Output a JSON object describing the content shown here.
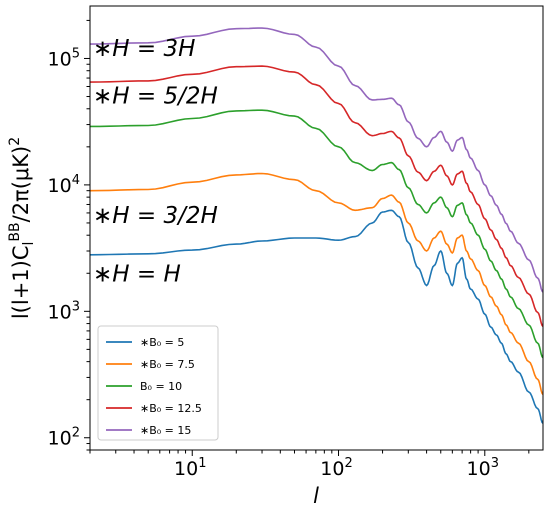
{
  "chart_data": {
    "type": "line",
    "title": "",
    "xlabel": "l",
    "ylabel": "l(l+1)C_l^{BB}/2π(μK)^2",
    "xscale": "log",
    "yscale": "log",
    "xlim": [
      2,
      2500
    ],
    "ylim": [
      80,
      260000
    ],
    "x_ticks": [
      {
        "base": "10",
        "exp": "1"
      },
      {
        "base": "10",
        "exp": "2"
      },
      {
        "base": "10",
        "exp": "3"
      }
    ],
    "y_ticks": [
      {
        "base": "10",
        "exp": "2"
      },
      {
        "base": "10",
        "exp": "3"
      },
      {
        "base": "10",
        "exp": "4"
      },
      {
        "base": "10",
        "exp": "5"
      }
    ],
    "grid": false,
    "legend_position": "lower-left",
    "series": [
      {
        "name": "∗B₀ = 5",
        "color": "#1f77b4",
        "x": [
          2,
          5,
          10,
          20,
          30,
          50,
          70,
          100,
          130,
          170,
          200,
          230,
          260,
          300,
          350,
          400,
          450,
          500,
          550,
          600,
          650,
          700,
          750,
          800,
          900,
          1000,
          1100,
          1200,
          1300,
          1400,
          1500,
          1700,
          2000,
          2300,
          2500
        ],
        "y": [
          2800,
          2850,
          3050,
          3400,
          3600,
          3800,
          3800,
          3650,
          3900,
          5000,
          6100,
          6300,
          5600,
          3500,
          2200,
          1600,
          2300,
          3000,
          2000,
          1600,
          2400,
          2650,
          1800,
          1500,
          1250,
          950,
          750,
          650,
          560,
          460,
          400,
          330,
          230,
          170,
          130
        ]
      },
      {
        "name": "∗B₀ = 7.5",
        "color": "#ff7f0e",
        "x": [
          2,
          5,
          10,
          20,
          30,
          50,
          70,
          100,
          130,
          170,
          200,
          230,
          260,
          300,
          350,
          400,
          450,
          500,
          550,
          600,
          650,
          700,
          750,
          800,
          900,
          1000,
          1100,
          1200,
          1300,
          1400,
          1500,
          1700,
          2000,
          2300,
          2500
        ],
        "y": [
          9000,
          9200,
          10500,
          12000,
          12300,
          11000,
          9000,
          7200,
          6300,
          6600,
          7800,
          8300,
          7300,
          5000,
          3600,
          3000,
          3800,
          4300,
          3400,
          2900,
          3800,
          4000,
          3000,
          2600,
          2100,
          1600,
          1300,
          1100,
          940,
          780,
          680,
          560,
          400,
          290,
          220
        ]
      },
      {
        "name": "B₀ = 10",
        "color": "#2ca02c",
        "x": [
          2,
          5,
          10,
          20,
          30,
          50,
          70,
          100,
          130,
          170,
          200,
          230,
          260,
          300,
          350,
          400,
          450,
          500,
          550,
          600,
          650,
          700,
          750,
          800,
          900,
          1000,
          1100,
          1200,
          1300,
          1400,
          1500,
          1700,
          2000,
          2300,
          2500
        ],
        "y": [
          29000,
          29500,
          33500,
          38500,
          39000,
          35000,
          28000,
          20000,
          15000,
          13000,
          14500,
          15000,
          13200,
          9500,
          7000,
          6000,
          7200,
          8000,
          6600,
          5600,
          6900,
          7200,
          5800,
          5000,
          4000,
          3100,
          2500,
          2100,
          1800,
          1500,
          1300,
          1050,
          780,
          560,
          430
        ]
      },
      {
        "name": "∗B₀ = 12.5",
        "color": "#d62728",
        "x": [
          2,
          5,
          10,
          20,
          30,
          50,
          70,
          100,
          130,
          170,
          200,
          230,
          260,
          300,
          350,
          400,
          450,
          500,
          550,
          600,
          650,
          700,
          750,
          800,
          900,
          1000,
          1100,
          1200,
          1300,
          1400,
          1500,
          1700,
          2000,
          2300,
          2500
        ],
        "y": [
          65000,
          66500,
          75000,
          86000,
          87000,
          78000,
          62000,
          44000,
          31000,
          24500,
          25500,
          26500,
          23500,
          17000,
          12600,
          10800,
          12800,
          14300,
          11800,
          10000,
          12200,
          12800,
          10300,
          8800,
          7000,
          5400,
          4400,
          3700,
          3150,
          2650,
          2300,
          1850,
          1370,
          980,
          760
        ]
      },
      {
        "name": "∗B₀ = 15",
        "color": "#9467bd",
        "x": [
          2,
          5,
          10,
          20,
          30,
          50,
          70,
          100,
          130,
          170,
          200,
          230,
          260,
          300,
          350,
          400,
          450,
          500,
          550,
          600,
          650,
          700,
          750,
          800,
          900,
          1000,
          1100,
          1200,
          1300,
          1400,
          1500,
          1700,
          2000,
          2300,
          2500
        ],
        "y": [
          130000,
          133000,
          150000,
          172000,
          174000,
          155000,
          123000,
          87000,
          61000,
          47000,
          47500,
          48500,
          43000,
          31500,
          23300,
          20000,
          23700,
          26500,
          21800,
          18500,
          22600,
          23700,
          19000,
          16300,
          13000,
          10000,
          8200,
          6900,
          5850,
          4950,
          4300,
          3450,
          2550,
          1830,
          1420
        ]
      }
    ],
    "annotations": [
      {
        "text": "∗H = 3H",
        "x": 2,
        "y": 105000
      },
      {
        "text": "∗H = 5/2H",
        "x": 2,
        "y": 44000
      },
      {
        "text": "∗H = 3/2H",
        "x": 2,
        "y": 5000
      },
      {
        "text": "∗H = H",
        "x": 2,
        "y": 1720
      }
    ]
  }
}
